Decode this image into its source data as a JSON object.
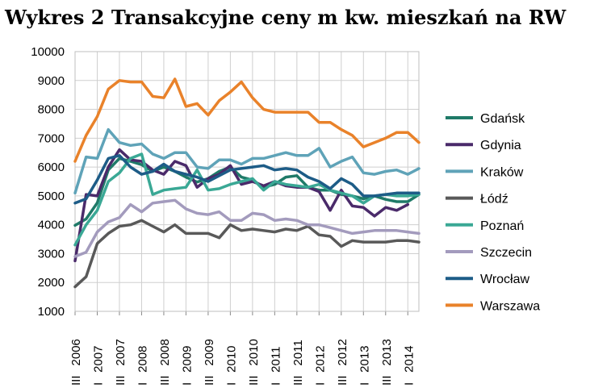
{
  "chart_data": {
    "type": "line",
    "title": "Wykres 2 Transakcyjne ceny m kw. mieszkań na RW",
    "ylim": [
      1000,
      10000
    ],
    "y_ticks": [
      1000,
      2000,
      3000,
      4000,
      5000,
      6000,
      7000,
      8000,
      9000,
      10000
    ],
    "x": [
      "2006 III",
      "2006 IV",
      "2007 I",
      "2007 II",
      "2007 III",
      "2007 IV",
      "2008 I",
      "2008 II",
      "2008 III",
      "2008 IV",
      "2009 I",
      "2009 II",
      "2009 III",
      "2009 IV",
      "2010 I",
      "2010 II",
      "2010 III",
      "2010 IV",
      "2011 I",
      "2011 II",
      "2011 III",
      "2011 IV",
      "2012 I",
      "2012 II",
      "2012 III",
      "2012 IV",
      "2013 I",
      "2013 II",
      "2013 III",
      "2013 IV",
      "2014 I",
      "2014 II"
    ],
    "x_tick_labels": [
      {
        "roman": "III",
        "year": "2006"
      },
      {
        "roman": "I",
        "year": "2007"
      },
      {
        "roman": "III",
        "year": "2007"
      },
      {
        "roman": "I",
        "year": "2008"
      },
      {
        "roman": "III",
        "year": "2008"
      },
      {
        "roman": "I",
        "year": "2009"
      },
      {
        "roman": "III",
        "year": "2009"
      },
      {
        "roman": "I",
        "year": "2010"
      },
      {
        "roman": "III",
        "year": "2010"
      },
      {
        "roman": "I",
        "year": "2011"
      },
      {
        "roman": "III",
        "year": "2011"
      },
      {
        "roman": "I",
        "year": "2012"
      },
      {
        "roman": "III",
        "year": "2012"
      },
      {
        "roman": "I",
        "year": "2013"
      },
      {
        "roman": "III",
        "year": "2013"
      },
      {
        "roman": "I",
        "year": "2014"
      }
    ],
    "grid": true,
    "legend_position": "right",
    "series": [
      {
        "name": "Gdańsk",
        "color": "#1f7a68",
        "values": [
          3980,
          4200,
          4760,
          5900,
          6300,
          6200,
          6080,
          5850,
          6000,
          5850,
          5650,
          5480,
          5600,
          5850,
          6000,
          5650,
          5550,
          5300,
          5400,
          5650,
          5700,
          5300,
          5200,
          5200,
          5050,
          5000,
          4900,
          5000,
          4880,
          4800,
          4800,
          5050
        ]
      },
      {
        "name": "Gdynia",
        "color": "#4a2a6a",
        "values": [
          2750,
          5050,
          5000,
          6000,
          6600,
          6250,
          6200,
          5900,
          5750,
          6200,
          6050,
          5300,
          5600,
          5750,
          6050,
          5400,
          5500,
          5350,
          5500,
          5350,
          5300,
          5300,
          5150,
          4500,
          5200,
          4650,
          4600,
          4300,
          4600,
          4500,
          4700,
          null
        ]
      },
      {
        "name": "Kraków",
        "color": "#5fa3b8",
        "values": [
          5100,
          6350,
          6300,
          7300,
          6850,
          6750,
          6800,
          6450,
          6300,
          6500,
          6500,
          6000,
          5950,
          6250,
          6250,
          6100,
          6300,
          6300,
          6400,
          6500,
          6400,
          6400,
          6650,
          6000,
          6200,
          6350,
          5800,
          5750,
          5850,
          5900,
          5750,
          5950
        ]
      },
      {
        "name": "Łódź",
        "color": "#595959",
        "values": [
          1850,
          2200,
          3350,
          3700,
          3950,
          4000,
          4150,
          3950,
          3750,
          4000,
          3700,
          3700,
          3700,
          3550,
          4000,
          3800,
          3850,
          3800,
          3750,
          3850,
          3800,
          3950,
          3650,
          3600,
          3250,
          3450,
          3400,
          3400,
          3400,
          3450,
          3450,
          3400
        ]
      },
      {
        "name": "Poznań",
        "color": "#3aa895",
        "values": [
          3300,
          4000,
          4500,
          5500,
          5800,
          6300,
          6450,
          5050,
          5200,
          5250,
          5300,
          5900,
          5200,
          5250,
          5400,
          5500,
          5600,
          5200,
          5500,
          5400,
          5350,
          5300,
          5400,
          5200,
          5100,
          5000,
          4750,
          5000,
          5050,
          5000,
          5000,
          5050
        ]
      },
      {
        "name": "Szczecin",
        "color": "#a39bbd",
        "values": [
          2900,
          3050,
          3750,
          4100,
          4250,
          4700,
          4450,
          4750,
          4800,
          4850,
          4550,
          4400,
          4350,
          4450,
          4150,
          4150,
          4400,
          4350,
          4150,
          4200,
          4150,
          4000,
          4000,
          3900,
          3800,
          3700,
          3750,
          3800,
          3800,
          3800,
          3750,
          3700
        ]
      },
      {
        "name": "Wrocław",
        "color": "#1d5c87",
        "values": [
          4750,
          4900,
          5550,
          6300,
          6400,
          6000,
          5750,
          5850,
          6100,
          5850,
          5750,
          5650,
          5500,
          5700,
          5900,
          5950,
          6000,
          6050,
          5900,
          5950,
          5900,
          5650,
          5500,
          5250,
          5600,
          5400,
          5000,
          5000,
          5050,
          5100,
          5100,
          5100
        ]
      },
      {
        "name": "Warszawa",
        "color": "#e9822a",
        "values": [
          6200,
          7100,
          7750,
          8700,
          9000,
          8950,
          8950,
          8450,
          8400,
          9050,
          8100,
          8200,
          7800,
          8300,
          8600,
          8950,
          8400,
          8000,
          7900,
          7900,
          7900,
          7900,
          7550,
          7550,
          7300,
          7100,
          6700,
          6850,
          7000,
          7200,
          7200,
          6850
        ]
      }
    ]
  }
}
